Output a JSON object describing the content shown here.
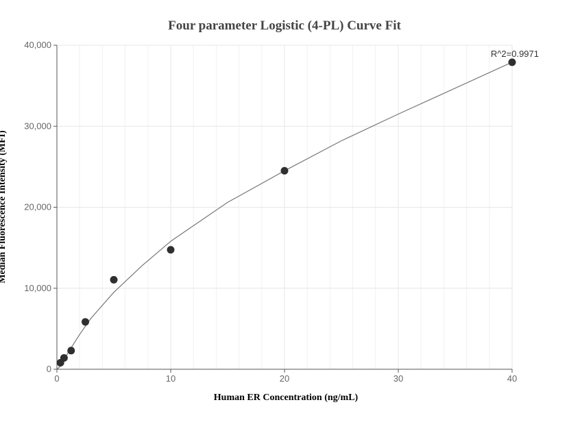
{
  "colors": {
    "point": "#2f2f2f",
    "curve": "#777777",
    "grid_major": "#e6e6ee",
    "grid_minor": "#f1f1f6",
    "axis": "#555555"
  },
  "chart_data": {
    "type": "scatter",
    "title": "Four parameter Logistic (4-PL) Curve Fit",
    "xlabel": "Human ER Concentration (ng/mL)",
    "ylabel": "Median Fluorescence Intensity (MFI)",
    "xlim": [
      0,
      40
    ],
    "ylim": [
      0,
      40000
    ],
    "x_ticks": [
      0,
      10,
      20,
      30,
      40
    ],
    "x_tick_labels": [
      "0",
      "10",
      "20",
      "30",
      "40"
    ],
    "y_ticks": [
      0,
      10000,
      20000,
      30000,
      40000
    ],
    "y_tick_labels": [
      "0",
      "10,000",
      "20,000",
      "30,000",
      "40,000"
    ],
    "grid": true,
    "annotation": "R^2=0.9971",
    "series": [
      {
        "kind": "points",
        "x": [
          0.3125,
          0.625,
          1.25,
          2.5,
          5,
          10,
          20,
          40
        ],
        "y": [
          800,
          1400,
          2300,
          5850,
          11050,
          14750,
          24500,
          37900
        ]
      },
      {
        "kind": "fit",
        "x": [
          0,
          0.25,
          0.5,
          1,
          2,
          3,
          5,
          7.5,
          10,
          15,
          20,
          25,
          30,
          35,
          40
        ],
        "y": [
          0,
          300,
          800,
          2100,
          4300,
          6300,
          9500,
          12800,
          15800,
          20600,
          24500,
          28200,
          31500,
          34700,
          37900
        ]
      }
    ]
  }
}
